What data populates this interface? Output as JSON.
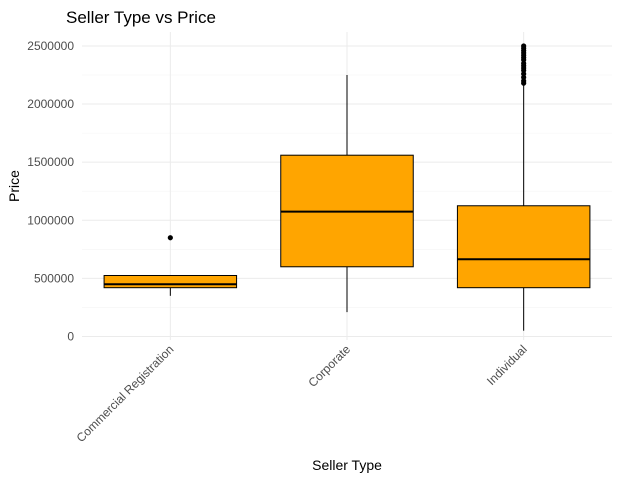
{
  "chart_data": {
    "type": "boxplot",
    "title": "Seller Type vs Price",
    "xlabel": "Seller Type",
    "ylabel": "Price",
    "ylim": [
      -30000,
      2620000
    ],
    "y_ticks": [
      0,
      500000,
      1000000,
      1500000,
      2000000,
      2500000
    ],
    "y_tick_labels": [
      "0",
      "500000",
      "1000000",
      "1500000",
      "2000000",
      "2500000"
    ],
    "grid": true,
    "legend": "none",
    "box_color": "#FFA500",
    "categories": [
      "Commercial Registration",
      "Corporate",
      "Individual"
    ],
    "boxes": [
      {
        "category": "Commercial Registration",
        "whisker_low": 350000,
        "q1": 420000,
        "median": 450000,
        "q3": 525000,
        "whisker_high": 525000,
        "outliers": [
          850000
        ]
      },
      {
        "category": "Corporate",
        "whisker_low": 210000,
        "q1": 600000,
        "median": 1075000,
        "q3": 1560000,
        "whisker_high": 2250000,
        "outliers": []
      },
      {
        "category": "Individual",
        "whisker_low": 50000,
        "q1": 420000,
        "median": 665000,
        "q3": 1125000,
        "whisker_high": 2160000,
        "outliers": [
          2180000,
          2200000,
          2230000,
          2260000,
          2290000,
          2310000,
          2330000,
          2350000,
          2380000,
          2400000,
          2420000,
          2440000,
          2460000,
          2480000,
          2500000
        ]
      }
    ]
  }
}
